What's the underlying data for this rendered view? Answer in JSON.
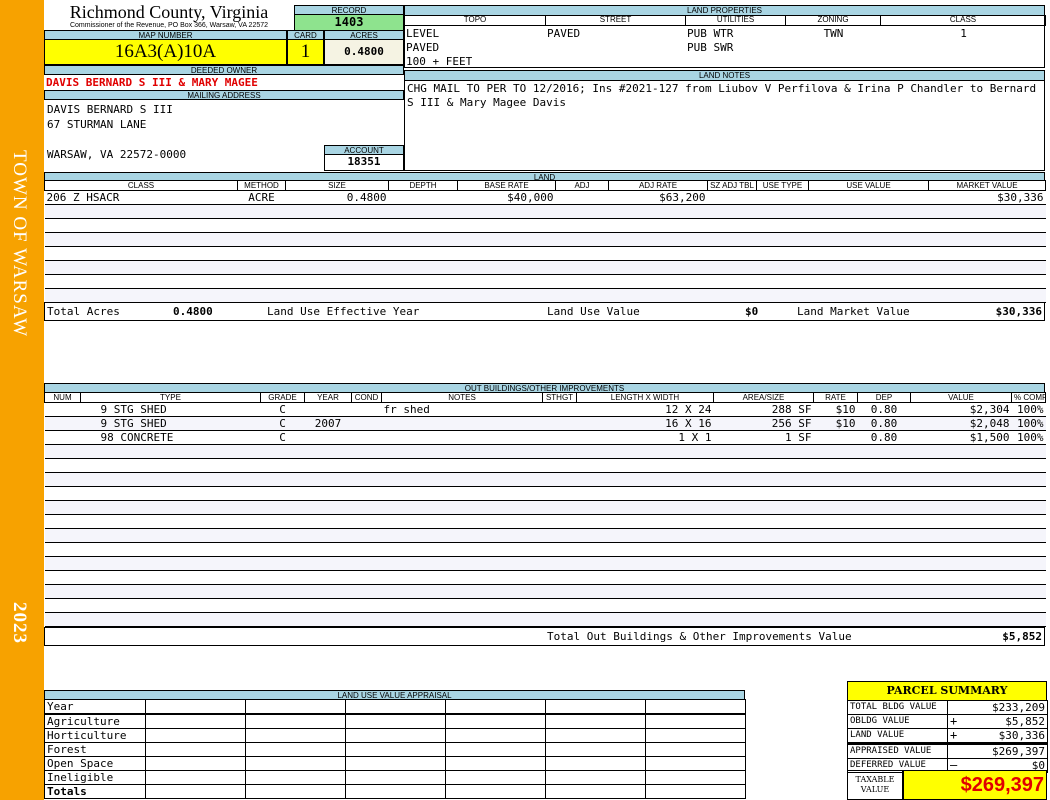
{
  "sidebar": {
    "town": "TOWN OF WARSAW",
    "year": "2023",
    "color": "#f7a200"
  },
  "header": {
    "county": "Richmond County, Virginia",
    "subtitle": "Commissioner of the Revenue, PO Box 366, Warsaw, VA 22572"
  },
  "record": {
    "label": "RECORD",
    "value": "1403"
  },
  "map": {
    "map_label": "MAP NUMBER",
    "map_value": "16A3(A)10A",
    "card_label": "CARD",
    "card_value": "1",
    "acres_label": "ACRES",
    "acres_value": "0.4800"
  },
  "owner": {
    "label": "DEEDED OWNER",
    "value": "DAVIS BERNARD S III & MARY MAGEE",
    "mailing_label": "MAILING ADDRESS",
    "mailing": [
      "DAVIS BERNARD S III",
      "67 STURMAN LANE",
      "",
      "WARSAW, VA 22572-0000"
    ],
    "account_label": "ACCOUNT",
    "account_value": "18351"
  },
  "land_properties": {
    "label": "LAND PROPERTIES",
    "columns": [
      "TOPO",
      "STREET",
      "UTILITIES",
      "ZONING",
      "CLASS"
    ],
    "rows": [
      [
        "LEVEL",
        "PAVED",
        "PUB WTR",
        "TWN",
        "1"
      ],
      [
        "PAVED",
        "",
        "PUB SWR",
        "",
        ""
      ],
      [
        "100 + FEET",
        "",
        "",
        "",
        ""
      ]
    ]
  },
  "land_notes": {
    "label": "LAND NOTES",
    "text": "CHG MAIL TO PER TO 12/2016; Ins #2021-127 from Liubov V Perfilova & Irina P Chandler to Bernard S III & Mary Magee Davis"
  },
  "land": {
    "label": "LAND",
    "columns": [
      "CLASS",
      "METHOD",
      "SIZE",
      "DEPTH",
      "BASE RATE",
      "ADJ",
      "ADJ RATE",
      "SZ ADJ TBL",
      "USE TYPE",
      "USE VALUE",
      "MARKET VALUE"
    ],
    "rows": [
      [
        "206 Z HSACR",
        "ACRE",
        "0.4800",
        "",
        "$40,000",
        "",
        "$63,200",
        "",
        "",
        "",
        "$30,336"
      ]
    ],
    "totals": {
      "total_acres_label": "Total Acres",
      "total_acres": "0.4800",
      "effective_year_label": "Land Use Effective Year",
      "effective_year": "",
      "use_value_label": "Land Use Value",
      "use_value": "$0",
      "market_value_label": "Land Market Value",
      "market_value": "$30,336"
    }
  },
  "outbuildings": {
    "label": "OUT BUILDINGS/OTHER IMPROVEMENTS",
    "columns": [
      "NUM",
      "TYPE",
      "GRADE",
      "YEAR",
      "COND",
      "NOTES",
      "STHGT",
      "LENGTH X WIDTH",
      "AREA/SIZE",
      "RATE",
      "DEP",
      "VALUE",
      "% COMP"
    ],
    "rows": [
      [
        "",
        "9 STG SHED",
        "C",
        "",
        "",
        "fr shed",
        "",
        "12 X 24",
        "288 SF",
        "$10",
        "0.80",
        "$2,304",
        "100%"
      ],
      [
        "",
        "9 STG SHED",
        "C",
        "2007",
        "",
        "",
        "",
        "16 X 16",
        "256 SF",
        "$10",
        "0.80",
        "$2,048",
        "100%"
      ],
      [
        "",
        "98 CONCRETE",
        "C",
        "",
        "",
        "",
        "",
        "1 X 1",
        "1 SF",
        "",
        "0.80",
        "$1,500",
        "100%"
      ]
    ],
    "total_label": "Total Out Buildings & Other Improvements Value",
    "total_value": "$5,852"
  },
  "land_use_appraisal": {
    "label": "LAND USE VALUE APPRAISAL",
    "rows": [
      "Year",
      "Agriculture",
      "Horticulture",
      "Forest",
      "Open Space",
      "Ineligible",
      "Totals"
    ]
  },
  "parcel_summary": {
    "title": "PARCEL SUMMARY",
    "rows": [
      {
        "label": "TOTAL BLDG VALUE",
        "op": "",
        "value": "$233,209"
      },
      {
        "label": "OBLDG VALUE",
        "op": "+",
        "value": "$5,852"
      },
      {
        "label": "LAND VALUE",
        "op": "+",
        "value": "$30,336"
      },
      {
        "label": "APPRAISED VALUE",
        "op": "",
        "value": "$269,397"
      },
      {
        "label": "DEFERRED VALUE",
        "op": "–",
        "value": "$0"
      }
    ],
    "taxable_label": "TAXABLE VALUE",
    "taxable_value": "$269,397"
  }
}
